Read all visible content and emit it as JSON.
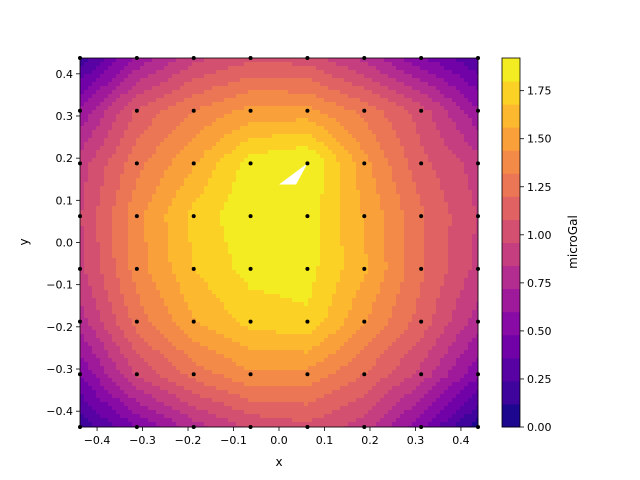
{
  "chart_data": {
    "type": "heatmap",
    "subtype": "filled-contour",
    "title": "",
    "xlabel": "x",
    "ylabel": "y",
    "xlim": [
      -0.4375,
      0.4375
    ],
    "ylim": [
      -0.4375,
      0.4375
    ],
    "x_ticks": [
      -0.4,
      -0.3,
      -0.2,
      -0.1,
      0.0,
      0.1,
      0.2,
      0.3,
      0.4
    ],
    "x_tick_labels": [
      "−0.4",
      "−0.3",
      "−0.2",
      "−0.1",
      "0.0",
      "0.1",
      "0.2",
      "0.3",
      "0.4"
    ],
    "y_ticks": [
      -0.4,
      -0.3,
      -0.2,
      -0.1,
      0.0,
      0.1,
      0.2,
      0.3,
      0.4
    ],
    "y_tick_labels": [
      "−0.4",
      "−0.3",
      "−0.2",
      "−0.1",
      "0.0",
      "0.1",
      "0.2",
      "0.3",
      "0.4"
    ],
    "colormap": "plasma",
    "colorbar": {
      "label": "microGal",
      "range": [
        0.0,
        1.92
      ],
      "ticks": [
        0.0,
        0.25,
        0.5,
        0.75,
        1.0,
        1.25,
        1.5,
        1.75
      ],
      "tick_labels": [
        "0.00",
        "0.25",
        "0.50",
        "0.75",
        "1.00",
        "1.25",
        "1.50",
        "1.75"
      ]
    },
    "grid_x": [
      -0.4375,
      -0.3125,
      -0.1875,
      -0.0625,
      0.0625,
      0.1875,
      0.3125,
      0.4375
    ],
    "grid_y": [
      -0.4375,
      -0.3125,
      -0.1875,
      -0.0625,
      0.0625,
      0.1875,
      0.3125,
      0.4375
    ],
    "values": [
      [
        0.15,
        0.48,
        0.78,
        0.98,
        1.05,
        0.9,
        0.5,
        0.05
      ],
      [
        0.48,
        0.98,
        1.25,
        1.42,
        1.4,
        1.2,
        0.92,
        0.5
      ],
      [
        0.78,
        1.25,
        1.55,
        1.72,
        1.78,
        1.45,
        1.15,
        0.78
      ],
      [
        0.92,
        1.38,
        1.68,
        1.85,
        1.85,
        1.58,
        1.22,
        0.92
      ],
      [
        0.95,
        1.4,
        1.72,
        1.9,
        1.86,
        1.55,
        1.22,
        0.95
      ],
      [
        0.9,
        1.28,
        1.55,
        1.86,
        1.95,
        1.48,
        1.12,
        0.9
      ],
      [
        0.62,
        1.1,
        1.32,
        1.48,
        1.48,
        1.28,
        1.02,
        0.62
      ],
      [
        0.15,
        0.62,
        0.92,
        1.05,
        1.02,
        0.8,
        0.5,
        0.25
      ]
    ],
    "masked_region": {
      "x": [
        0.0,
        0.0625,
        0.0375
      ],
      "y": [
        0.1375,
        0.1875,
        0.1375
      ],
      "note": "value above colorbar maximum"
    },
    "contour_levels": 16,
    "point_marker_color": "#000000"
  }
}
